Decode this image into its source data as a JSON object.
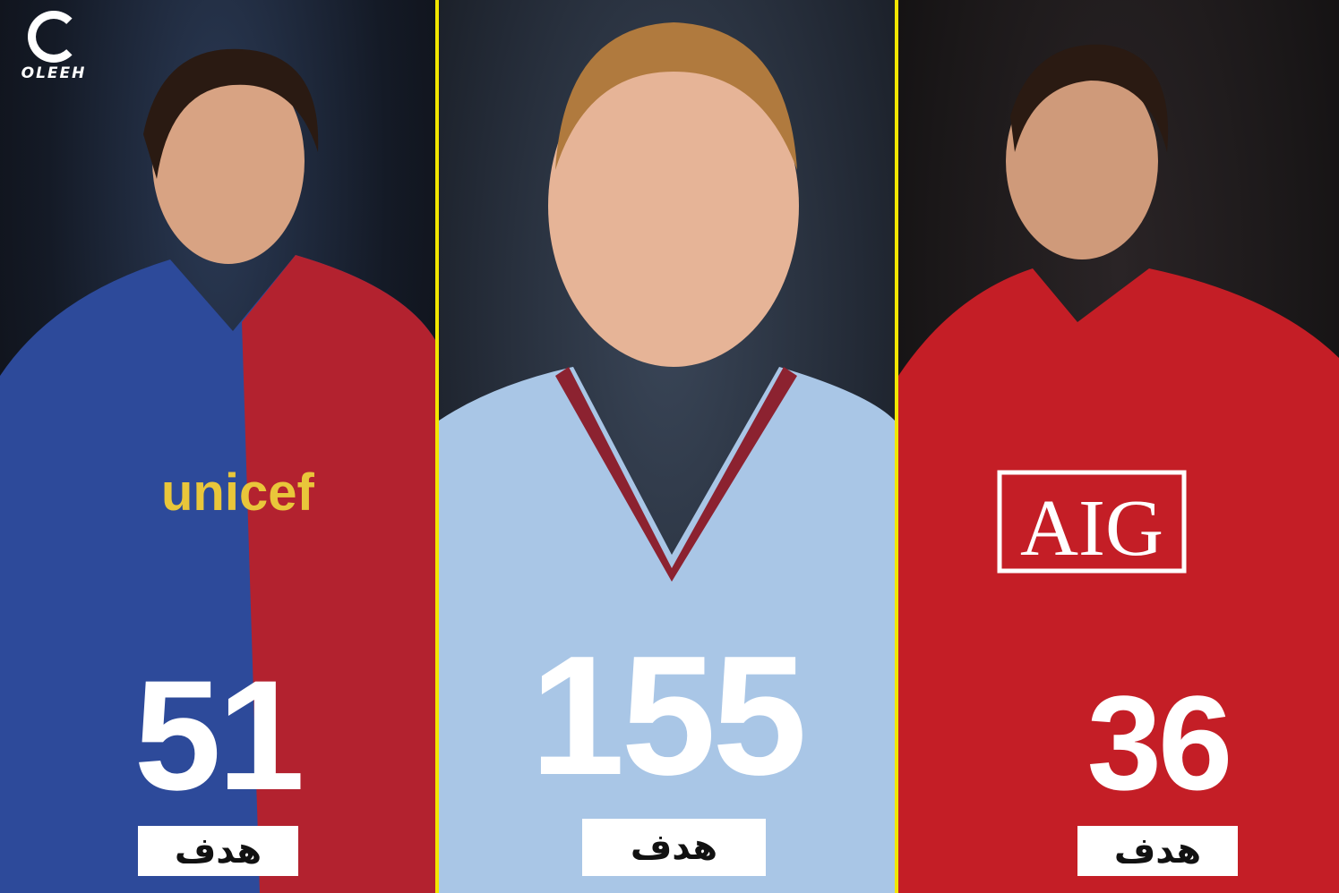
{
  "brand": {
    "logo_text": "OLEEH"
  },
  "colors": {
    "divider": "#f2e600",
    "label_bg": "#ffffff",
    "number": "#ffffff"
  },
  "players": [
    {
      "goals": "51",
      "label": "هدف",
      "jersey_sponsor": "unicef"
    },
    {
      "goals": "155",
      "label": "هدف"
    },
    {
      "goals": "36",
      "label": "هدف",
      "jersey_sponsor": "AIG"
    }
  ]
}
